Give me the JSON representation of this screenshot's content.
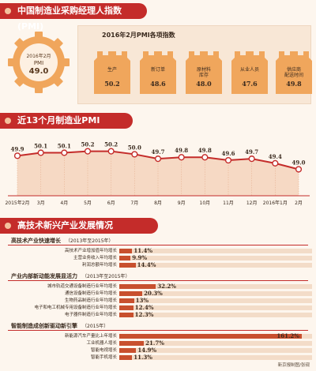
{
  "header_pmi": "中国制造业采购经理人指数(PMI)",
  "header_trend": "近13个月制造业PMI",
  "header_hightech": "高技术新兴产业发展情况",
  "gear": {
    "line1": "2016年2月",
    "line2": "PMI",
    "value": "49.0"
  },
  "sub_index_title": "2016年2月PMI各项指数",
  "sub_indices": [
    {
      "label": "生产",
      "value": "50.2"
    },
    {
      "label": "新订单",
      "value": "48.6"
    },
    {
      "label": "原材料\n库存",
      "value": "48.0"
    },
    {
      "label": "从业人员",
      "value": "47.6"
    },
    {
      "label": "供应商\n配送时间",
      "value": "49.8"
    }
  ],
  "groups": [
    {
      "title": "高技术产业快速增长",
      "unit": "（2013年至2015年）",
      "rows": [
        {
          "label": "高技术产业增加值年均增长",
          "value": 11.4,
          "text": "11.4%"
        },
        {
          "label": "主营业务收入年均增长",
          "value": 9.9,
          "text": "9.9%"
        },
        {
          "label": "利润总额年均增长",
          "value": 14.4,
          "text": "14.4%"
        }
      ]
    },
    {
      "title": "产业内部新动能发展显活力",
      "unit": "（2013年至2015年）",
      "rows": [
        {
          "label": "城市轨道交通设备制造行业年均增长",
          "value": 32.2,
          "text": "32.2%"
        },
        {
          "label": "通信设备制造行业年均增长",
          "value": 20.3,
          "text": "20.3%"
        },
        {
          "label": "生物药品制造行业年均增长",
          "value": 13.0,
          "text": "13%"
        },
        {
          "label": "电子和电工机械专用设备制造行业年均增长",
          "value": 12.4,
          "text": "12.4%"
        },
        {
          "label": "电子器件制造行业年均增长",
          "value": 12.3,
          "text": "12.3%"
        }
      ]
    },
    {
      "title": "智能制造成创新驱动新引擎",
      "unit": "（2015年）",
      "rows": [
        {
          "label": "新能源汽车产量比上年增长",
          "value": 161.2,
          "text": "161.2%"
        },
        {
          "label": "工业机器人增长",
          "value": 21.7,
          "text": "21.7%"
        },
        {
          "label": "智能电视增长",
          "value": 14.9,
          "text": "14.9%"
        },
        {
          "label": "智能手机增长",
          "value": 11.3,
          "text": "11.3%"
        }
      ]
    }
  ],
  "credit": "新京报制图/张砚",
  "colors": {
    "red": "#c42c2a",
    "orange": "#e0823c",
    "bar": "#c8502e",
    "gear": "#f0a65c"
  },
  "chart_data": {
    "type": "line",
    "categories": [
      "2015年2月",
      "3月",
      "4月",
      "5月",
      "6月",
      "7月",
      "8月",
      "9月",
      "10月",
      "11月",
      "12月",
      "2016年1月",
      "2月"
    ],
    "values": [
      49.9,
      50.1,
      50.1,
      50.2,
      50.2,
      50.0,
      49.7,
      49.8,
      49.8,
      49.6,
      49.7,
      49.4,
      49.0
    ],
    "labels": [
      "49.9",
      "50.1",
      "50.1",
      "50.2",
      "50.2",
      "50.0",
      "49.7",
      "49.8",
      "49.8",
      "49.6",
      "49.7",
      "49.4",
      "49.0"
    ],
    "ylim": [
      48.5,
      50.6
    ],
    "grid": false
  }
}
